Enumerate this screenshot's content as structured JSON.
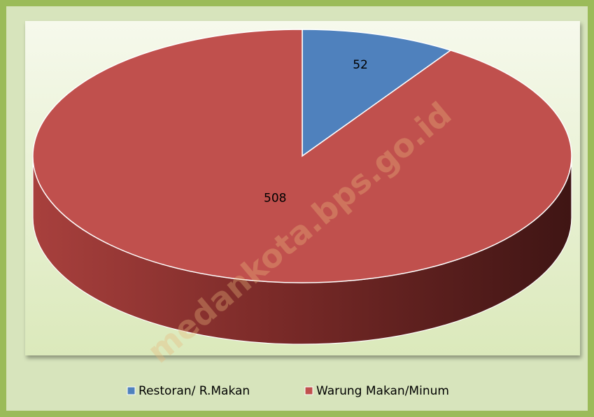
{
  "chart_data": {
    "type": "pie",
    "categories": [
      "Restoran/ R.Makan",
      "Warung Makan/Minum"
    ],
    "values": [
      52,
      508
    ],
    "colors": [
      "#4f81bd",
      "#c0504d"
    ],
    "legend": "bottom",
    "watermark": "medankota.bps.go.id"
  }
}
